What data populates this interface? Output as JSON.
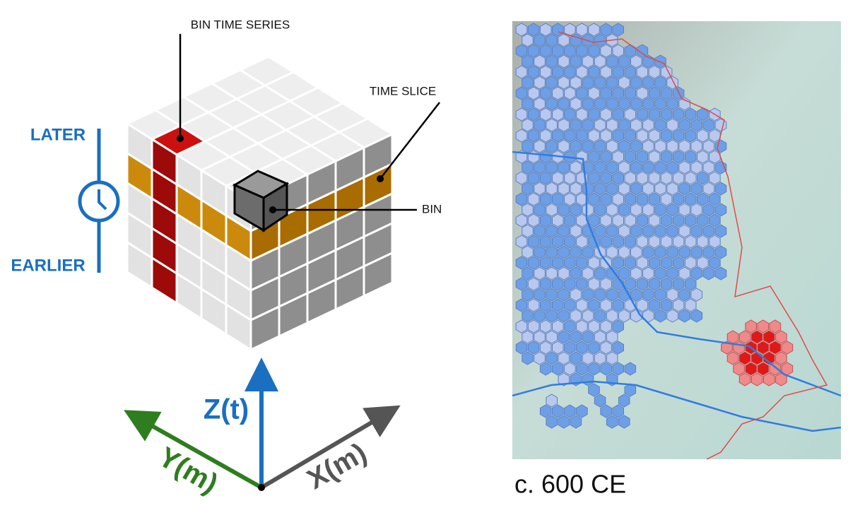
{
  "cube": {
    "labels": {
      "bin_time_series": "BIN TIME SERIES",
      "time_slice": "TIME SLICE",
      "bin": "BIN"
    },
    "time": {
      "later": "LATER",
      "earlier": "EARLIER"
    }
  },
  "axes": {
    "z": "Z(t)",
    "y": "Y(m)",
    "x": "X(m)"
  },
  "map": {
    "caption": "c. 600 CE"
  }
}
